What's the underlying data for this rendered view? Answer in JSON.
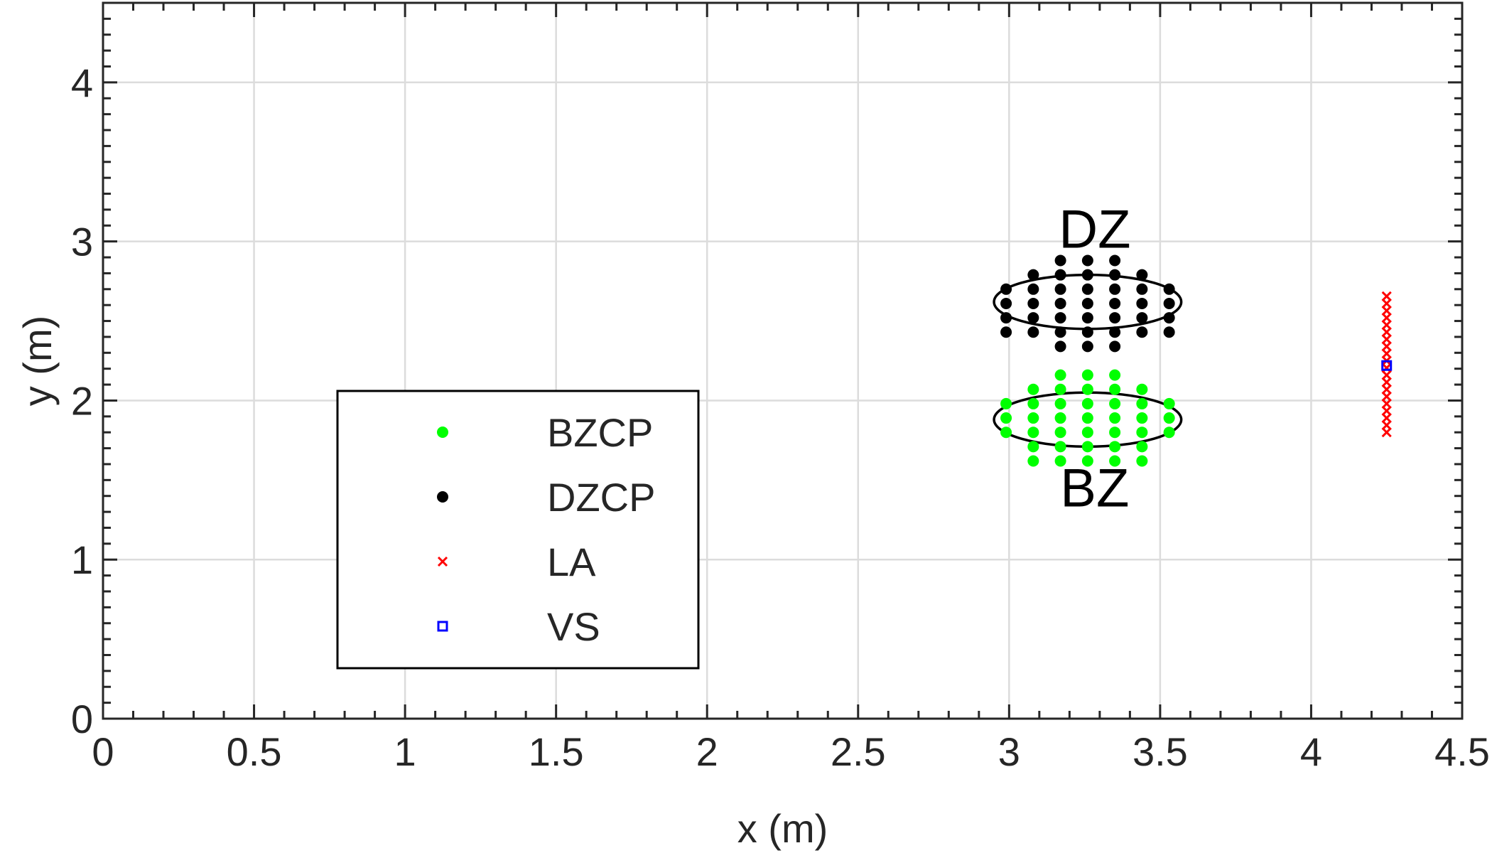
{
  "chart_data": {
    "type": "scatter",
    "xlabel": "x (m)",
    "ylabel": "y (m)",
    "xlim": [
      0,
      4.5
    ],
    "ylim": [
      0,
      4.5
    ],
    "x_ticks": [
      0,
      0.5,
      1,
      1.5,
      2,
      2.5,
      3,
      3.5,
      4,
      4.5
    ],
    "x_tick_labels": [
      "0",
      "0.5",
      "1",
      "1.5",
      "2",
      "2.5",
      "3",
      "3.5",
      "4",
      "4.5"
    ],
    "y_ticks": [
      0,
      1,
      2,
      3,
      4
    ],
    "y_tick_labels": [
      "0",
      "1",
      "2",
      "3",
      "4"
    ],
    "grid": true,
    "legend_position": "lower-left",
    "legend": [
      {
        "label": "BZCP",
        "marker": "dot",
        "color": "#00ff00"
      },
      {
        "label": "DZCP",
        "marker": "dot",
        "color": "#000000"
      },
      {
        "label": "LA",
        "marker": "x",
        "color": "#ff0000"
      },
      {
        "label": "VS",
        "marker": "square",
        "color": "#0000ff"
      }
    ],
    "zones": [
      {
        "label": "DZ",
        "center": [
          3.26,
          2.62
        ],
        "radius": [
          0.31,
          0.17
        ],
        "label_position": "above"
      },
      {
        "label": "BZ",
        "center": [
          3.26,
          1.88
        ],
        "radius": [
          0.31,
          0.17
        ],
        "label_position": "below"
      }
    ],
    "series": [
      {
        "name": "BZCP",
        "color": "#00ff00",
        "marker": "dot",
        "x": [
          2.99,
          2.99,
          2.99,
          3.08,
          3.08,
          3.08,
          3.08,
          3.08,
          3.08,
          3.17,
          3.17,
          3.17,
          3.17,
          3.17,
          3.17,
          3.17,
          3.26,
          3.26,
          3.26,
          3.26,
          3.26,
          3.26,
          3.26,
          3.35,
          3.35,
          3.35,
          3.35,
          3.35,
          3.35,
          3.35,
          3.44,
          3.44,
          3.44,
          3.44,
          3.44,
          3.44,
          3.53,
          3.53,
          3.53
        ],
        "y": [
          1.98,
          1.89,
          1.8,
          2.07,
          1.98,
          1.89,
          1.8,
          1.71,
          1.62,
          2.16,
          2.07,
          1.98,
          1.89,
          1.8,
          1.71,
          1.62,
          2.16,
          2.07,
          1.98,
          1.89,
          1.8,
          1.71,
          1.62,
          2.16,
          2.07,
          1.98,
          1.89,
          1.8,
          1.71,
          1.62,
          2.07,
          1.98,
          1.89,
          1.8,
          1.71,
          1.62,
          1.98,
          1.89,
          1.8
        ]
      },
      {
        "name": "DZCP",
        "color": "#000000",
        "marker": "dot",
        "x": [
          2.99,
          2.99,
          2.99,
          2.99,
          3.08,
          3.08,
          3.08,
          3.08,
          3.08,
          3.17,
          3.17,
          3.17,
          3.17,
          3.17,
          3.17,
          3.17,
          3.26,
          3.26,
          3.26,
          3.26,
          3.26,
          3.26,
          3.26,
          3.35,
          3.35,
          3.35,
          3.35,
          3.35,
          3.35,
          3.35,
          3.44,
          3.44,
          3.44,
          3.44,
          3.44,
          3.53,
          3.53,
          3.53,
          3.53
        ],
        "y": [
          2.7,
          2.61,
          2.52,
          2.43,
          2.79,
          2.7,
          2.61,
          2.52,
          2.43,
          2.88,
          2.79,
          2.7,
          2.61,
          2.52,
          2.43,
          2.34,
          2.88,
          2.79,
          2.7,
          2.61,
          2.52,
          2.43,
          2.34,
          2.88,
          2.79,
          2.7,
          2.61,
          2.52,
          2.43,
          2.34,
          2.79,
          2.7,
          2.61,
          2.52,
          2.43,
          2.7,
          2.61,
          2.52,
          2.43
        ]
      },
      {
        "name": "LA",
        "color": "#ff0000",
        "marker": "x",
        "x": [
          4.25,
          4.25,
          4.25,
          4.25,
          4.25,
          4.25,
          4.25,
          4.25,
          4.25,
          4.25,
          4.25,
          4.25,
          4.25,
          4.25,
          4.25,
          4.25,
          4.25,
          4.25,
          4.25,
          4.25
        ],
        "y": [
          1.8,
          1.845,
          1.89,
          1.935,
          1.98,
          2.025,
          2.07,
          2.115,
          2.16,
          2.205,
          2.25,
          2.295,
          2.34,
          2.385,
          2.43,
          2.475,
          2.52,
          2.565,
          2.61,
          2.655
        ]
      },
      {
        "name": "VS",
        "color": "#0000ff",
        "marker": "square",
        "x": [
          4.25
        ],
        "y": [
          2.22
        ]
      }
    ]
  }
}
